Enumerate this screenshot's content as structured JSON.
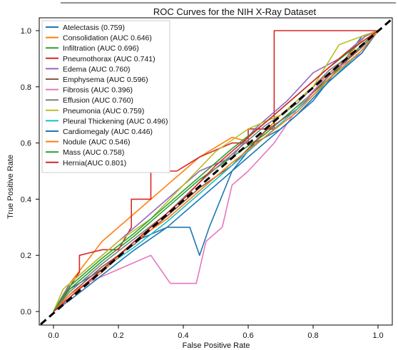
{
  "chart_data": {
    "type": "line",
    "title": "ROC Curves for the NIH X-Ray Dataset",
    "xlabel": "False Positive Rate",
    "ylabel": "True Positive Rate",
    "xlim": [
      0.0,
      1.0
    ],
    "ylim": [
      0.0,
      1.0
    ],
    "x_ticks": [
      "0.0",
      "0.2",
      "0.4",
      "0.6",
      "0.8",
      "1.0"
    ],
    "y_ticks": [
      "0.0",
      "0.2",
      "0.4",
      "0.6",
      "0.8",
      "1.0"
    ],
    "grid": false,
    "legend_position": "upper-left",
    "diagonal": {
      "x": [
        0,
        1
      ],
      "y": [
        0,
        1
      ],
      "style": "dashed",
      "color": "#000000"
    },
    "series": [
      {
        "name": "Atelectasis (0.759)",
        "color": "#1f77b4",
        "x": [
          0,
          0.05,
          0.15,
          0.25,
          0.35,
          0.42,
          0.45,
          0.48,
          0.55,
          0.62,
          0.7,
          0.8,
          0.9,
          0.95,
          1
        ],
        "y": [
          0,
          0.08,
          0.15,
          0.25,
          0.3,
          0.3,
          0.2,
          0.3,
          0.5,
          0.6,
          0.65,
          0.75,
          0.9,
          0.98,
          1
        ]
      },
      {
        "name": "Consolidation (AUC 0.646)",
        "color": "#ff7f0e",
        "x": [
          0,
          0.05,
          0.15,
          0.25,
          0.35,
          0.45,
          0.55,
          0.62,
          0.7,
          0.8,
          0.9,
          0.96,
          1
        ],
        "y": [
          0,
          0.1,
          0.25,
          0.35,
          0.45,
          0.55,
          0.62,
          0.6,
          0.7,
          0.8,
          0.9,
          0.98,
          1
        ]
      },
      {
        "name": "Infiltration (AUC 0.696)",
        "color": "#2ca02c",
        "x": [
          0,
          0.05,
          0.15,
          0.25,
          0.35,
          0.45,
          0.55,
          0.65,
          0.75,
          0.85,
          0.95,
          1
        ],
        "y": [
          0,
          0.08,
          0.18,
          0.27,
          0.37,
          0.47,
          0.55,
          0.63,
          0.73,
          0.83,
          0.95,
          1
        ]
      },
      {
        "name": "Pneumothorax (AUC 0.741)",
        "color": "#d62728",
        "x": [
          0,
          0.08,
          0.08,
          0.15,
          0.2,
          0.24,
          0.24,
          0.3,
          0.3,
          0.38,
          0.45,
          0.55,
          0.6,
          0.6,
          0.68,
          0.68,
          0.9,
          0.9,
          1
        ],
        "y": [
          0,
          0.14,
          0.2,
          0.22,
          0.22,
          0.3,
          0.4,
          0.4,
          0.5,
          0.5,
          0.55,
          0.6,
          0.6,
          0.65,
          0.65,
          1.0,
          1.0,
          1.0,
          1
        ]
      },
      {
        "name": "Edema (AUC 0.760)",
        "color": "#9467bd",
        "x": [
          0,
          0.05,
          0.15,
          0.25,
          0.35,
          0.45,
          0.55,
          0.62,
          0.72,
          0.8,
          0.88,
          0.96,
          1
        ],
        "y": [
          0,
          0.1,
          0.2,
          0.3,
          0.4,
          0.5,
          0.55,
          0.65,
          0.75,
          0.85,
          0.9,
          0.98,
          1
        ]
      },
      {
        "name": "Emphysema (AUC 0.596)",
        "color": "#8c564b",
        "x": [
          0,
          0.05,
          0.15,
          0.25,
          0.35,
          0.45,
          0.55,
          0.65,
          0.75,
          0.85,
          0.95,
          1
        ],
        "y": [
          0,
          0.06,
          0.16,
          0.24,
          0.34,
          0.44,
          0.52,
          0.64,
          0.72,
          0.84,
          0.94,
          1
        ]
      },
      {
        "name": "Fibrosis (AUC 0.396)",
        "color": "#e377c2",
        "x": [
          0,
          0.1,
          0.2,
          0.3,
          0.36,
          0.44,
          0.47,
          0.52,
          0.55,
          0.6,
          0.68,
          0.75,
          0.85,
          0.95,
          1
        ],
        "y": [
          0,
          0.1,
          0.15,
          0.2,
          0.1,
          0.1,
          0.25,
          0.3,
          0.45,
          0.5,
          0.6,
          0.72,
          0.85,
          0.92,
          1
        ]
      },
      {
        "name": "Effusion (AUC 0.760)",
        "color": "#7f7f7f",
        "x": [
          0,
          0.05,
          0.15,
          0.25,
          0.35,
          0.45,
          0.55,
          0.65,
          0.75,
          0.85,
          0.95,
          1
        ],
        "y": [
          0,
          0.07,
          0.17,
          0.26,
          0.35,
          0.46,
          0.56,
          0.66,
          0.74,
          0.86,
          0.94,
          1
        ]
      },
      {
        "name": "Pneumonia (AUC 0.759)",
        "color": "#bcbd22",
        "x": [
          0,
          0.03,
          0.1,
          0.2,
          0.3,
          0.4,
          0.5,
          0.6,
          0.7,
          0.8,
          0.88,
          0.95,
          1
        ],
        "y": [
          0,
          0.08,
          0.15,
          0.25,
          0.33,
          0.45,
          0.57,
          0.65,
          0.7,
          0.8,
          0.95,
          0.98,
          1
        ]
      },
      {
        "name": "Pleural Thickening (AUC 0.496)",
        "color": "#17becf",
        "x": [
          0,
          0.05,
          0.15,
          0.25,
          0.35,
          0.45,
          0.55,
          0.65,
          0.75,
          0.85,
          0.95,
          1
        ],
        "y": [
          0,
          0.05,
          0.15,
          0.23,
          0.32,
          0.42,
          0.52,
          0.62,
          0.72,
          0.82,
          0.93,
          1
        ]
      },
      {
        "name": "Cardiomegaly (AUC 0.446)",
        "color": "#1f77b4",
        "x": [
          0,
          0.05,
          0.15,
          0.25,
          0.35,
          0.45,
          0.55,
          0.65,
          0.75,
          0.85,
          0.95,
          1
        ],
        "y": [
          0,
          0.04,
          0.13,
          0.22,
          0.3,
          0.4,
          0.5,
          0.6,
          0.7,
          0.82,
          0.92,
          1
        ]
      },
      {
        "name": "Nodule (AUC 0.546)",
        "color": "#ff7f0e",
        "x": [
          0,
          0.05,
          0.15,
          0.25,
          0.35,
          0.45,
          0.55,
          0.65,
          0.75,
          0.85,
          0.95,
          1
        ],
        "y": [
          0,
          0.06,
          0.14,
          0.25,
          0.33,
          0.43,
          0.53,
          0.62,
          0.71,
          0.83,
          0.93,
          1
        ]
      },
      {
        "name": "Mass (AUC 0.758)",
        "color": "#2ca02c",
        "x": [
          0,
          0.05,
          0.15,
          0.25,
          0.35,
          0.45,
          0.55,
          0.65,
          0.75,
          0.85,
          0.95,
          1
        ],
        "y": [
          0,
          0.09,
          0.19,
          0.28,
          0.38,
          0.48,
          0.58,
          0.67,
          0.77,
          0.87,
          0.96,
          1
        ]
      },
      {
        "name": "Hernia(AUC 0.801)",
        "color": "#d62728",
        "x": [
          0,
          0.1,
          0.2,
          0.3,
          0.4,
          0.5,
          0.6,
          0.7,
          0.8,
          0.9,
          1
        ],
        "y": [
          0,
          0.1,
          0.2,
          0.3,
          0.4,
          0.52,
          0.62,
          0.72,
          0.82,
          0.92,
          1
        ]
      }
    ]
  }
}
